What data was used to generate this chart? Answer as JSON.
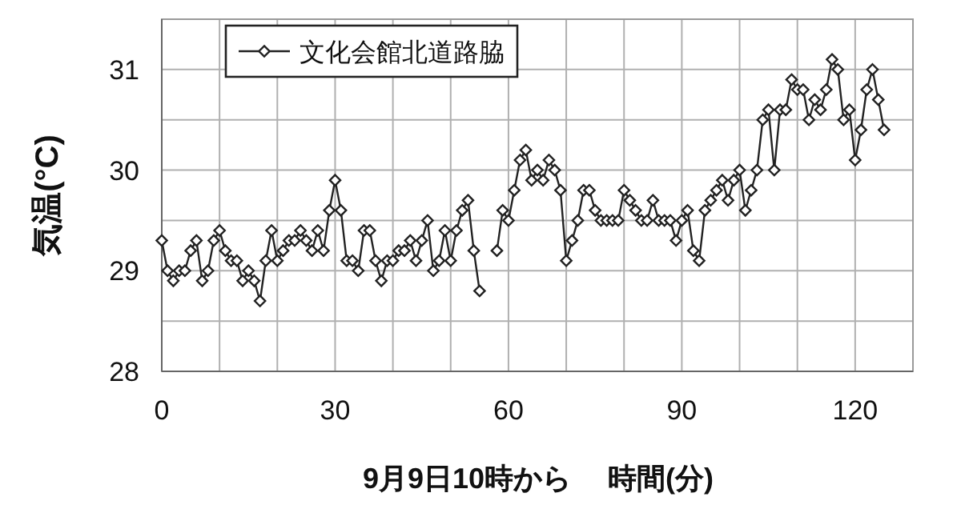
{
  "chart_data": {
    "type": "line",
    "xlabel": "9月9日10時から　 時間(分)",
    "ylabel": "気温(°C)",
    "xlim": [
      0,
      130
    ],
    "ylim": [
      28,
      31.5
    ],
    "xticks": [
      0,
      {
        "value": 10,
        "label": null
      },
      {
        "value": 20,
        "label": null
      },
      30,
      {
        "value": 40,
        "label": null
      },
      {
        "value": 50,
        "label": null
      },
      60,
      {
        "value": 70,
        "label": null
      },
      {
        "value": 80,
        "label": null
      },
      90,
      {
        "value": 100,
        "label": null
      },
      {
        "value": 110,
        "label": null
      },
      120,
      {
        "value": 130,
        "label": null
      }
    ],
    "yticks": [
      28,
      {
        "value": 28.5,
        "label": null
      },
      29,
      {
        "value": 29.5,
        "label": null
      },
      30,
      {
        "value": 30.5,
        "label": null
      },
      31
    ],
    "grid": true,
    "legend": "top left",
    "marker": "diamond",
    "line_style": "solid",
    "x": [
      0,
      1,
      2,
      3,
      4,
      5,
      6,
      7,
      8,
      9,
      10,
      11,
      12,
      13,
      14,
      15,
      16,
      17,
      18,
      19,
      20,
      21,
      22,
      23,
      24,
      25,
      26,
      27,
      28,
      29,
      30,
      31,
      32,
      33,
      34,
      35,
      36,
      37,
      38,
      39,
      40,
      41,
      42,
      43,
      44,
      45,
      46,
      47,
      48,
      49,
      50,
      51,
      52,
      53,
      54,
      55,
      56,
      57,
      58,
      59,
      60,
      61,
      62,
      63,
      64,
      65,
      66,
      67,
      68,
      69,
      70,
      71,
      72,
      73,
      74,
      75,
      76,
      77,
      78,
      79,
      80,
      81,
      82,
      83,
      84,
      85,
      86,
      87,
      88,
      89,
      90,
      91,
      92,
      93,
      94,
      95,
      96,
      97,
      98,
      99,
      100,
      101,
      102,
      103,
      104,
      105,
      106,
      107,
      108,
      109,
      110,
      111,
      112,
      113,
      114,
      115,
      116,
      117,
      118,
      119,
      120,
      121,
      122,
      123,
      124,
      125
    ],
    "series": [
      {
        "name": "文化会館北道路脇",
        "color": "#222222",
        "values": [
          29.3,
          29.0,
          28.9,
          29.0,
          29.0,
          29.2,
          29.3,
          28.9,
          29.0,
          29.3,
          29.4,
          29.2,
          29.1,
          29.1,
          28.9,
          29.0,
          28.9,
          28.7,
          29.1,
          29.4,
          29.1,
          29.2,
          29.3,
          29.3,
          29.4,
          29.3,
          29.2,
          29.4,
          29.2,
          29.6,
          29.9,
          29.6,
          29.1,
          29.1,
          29.0,
          29.4,
          29.4,
          29.1,
          28.9,
          29.1,
          29.1,
          29.2,
          29.2,
          29.3,
          29.1,
          29.3,
          29.5,
          29.0,
          29.1,
          29.4,
          29.1,
          29.4,
          29.6,
          29.7,
          29.2,
          28.8,
          null,
          null,
          29.2,
          29.6,
          29.5,
          29.8,
          30.1,
          30.2,
          29.9,
          30.0,
          29.9,
          30.1,
          30.0,
          29.8,
          29.1,
          29.3,
          29.5,
          29.8,
          29.8,
          29.6,
          29.5,
          29.5,
          29.5,
          29.5,
          29.8,
          29.7,
          29.6,
          29.5,
          29.5,
          29.7,
          29.5,
          29.5,
          29.5,
          29.3,
          29.5,
          29.6,
          29.2,
          29.1,
          29.6,
          29.7,
          29.8,
          29.9,
          29.7,
          29.9,
          30.0,
          29.6,
          29.8,
          30.0,
          30.5,
          30.6,
          30.0,
          30.6,
          30.6,
          30.9,
          30.8,
          30.8,
          30.5,
          30.7,
          30.6,
          30.8,
          31.1,
          31.0,
          30.5,
          30.6,
          30.1,
          30.4,
          30.8,
          31.0,
          30.7,
          30.4
        ]
      }
    ]
  }
}
